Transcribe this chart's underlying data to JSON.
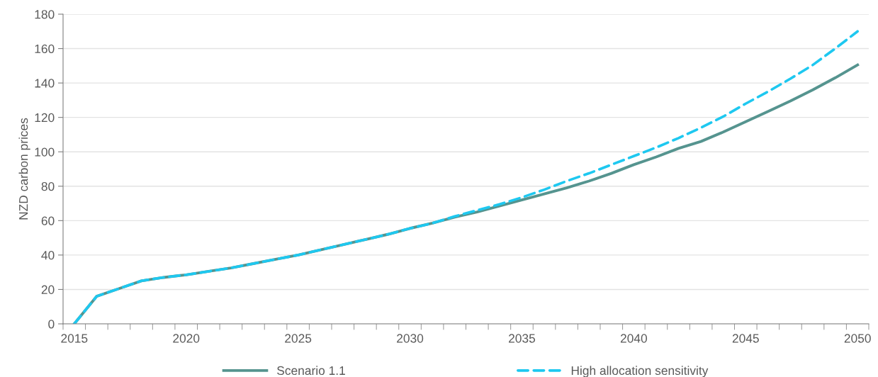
{
  "chart_data": {
    "type": "line",
    "ylabel": "NZD carbon prices",
    "categories": [
      "2015",
      null,
      null,
      null,
      null,
      "2020",
      null,
      null,
      null,
      null,
      "2025",
      null,
      null,
      null,
      null,
      "2030",
      null,
      null,
      null,
      null,
      "2035",
      null,
      null,
      null,
      null,
      "2040",
      null,
      null,
      null,
      null,
      "2045",
      null,
      null,
      null,
      null,
      "2050"
    ],
    "series": [
      {
        "name": "Scenario 1.1",
        "color": "#55948f",
        "line_style": "solid",
        "values": [
          0,
          16,
          20.5,
          25,
          27,
          28.5,
          30.5,
          32.5,
          35,
          37.5,
          40,
          43,
          46,
          49,
          52,
          55.5,
          58.5,
          62,
          65,
          68.5,
          72,
          75.5,
          79,
          83,
          87.5,
          92.5,
          97,
          102,
          106,
          111.5,
          117.5,
          123.5,
          129.5,
          136,
          143,
          150.5
        ]
      },
      {
        "name": "High allocation sensitivity",
        "color": "#1ec8f0",
        "line_style": "dashed",
        "values": [
          0,
          16,
          20.5,
          25,
          27,
          28.5,
          30.5,
          32.5,
          35,
          37.5,
          40,
          43,
          46,
          49,
          52,
          55.5,
          58.5,
          62.5,
          66,
          69.5,
          73.5,
          78,
          83,
          87.5,
          92.5,
          97.5,
          102.5,
          108,
          114,
          120.5,
          128,
          135,
          142.5,
          150.5,
          160,
          170
        ]
      }
    ],
    "ylim": [
      0,
      180
    ],
    "yticks": [
      0,
      20,
      40,
      60,
      80,
      100,
      120,
      140,
      160,
      180
    ],
    "grid": "y",
    "legend": "bottom",
    "marker": "none"
  }
}
